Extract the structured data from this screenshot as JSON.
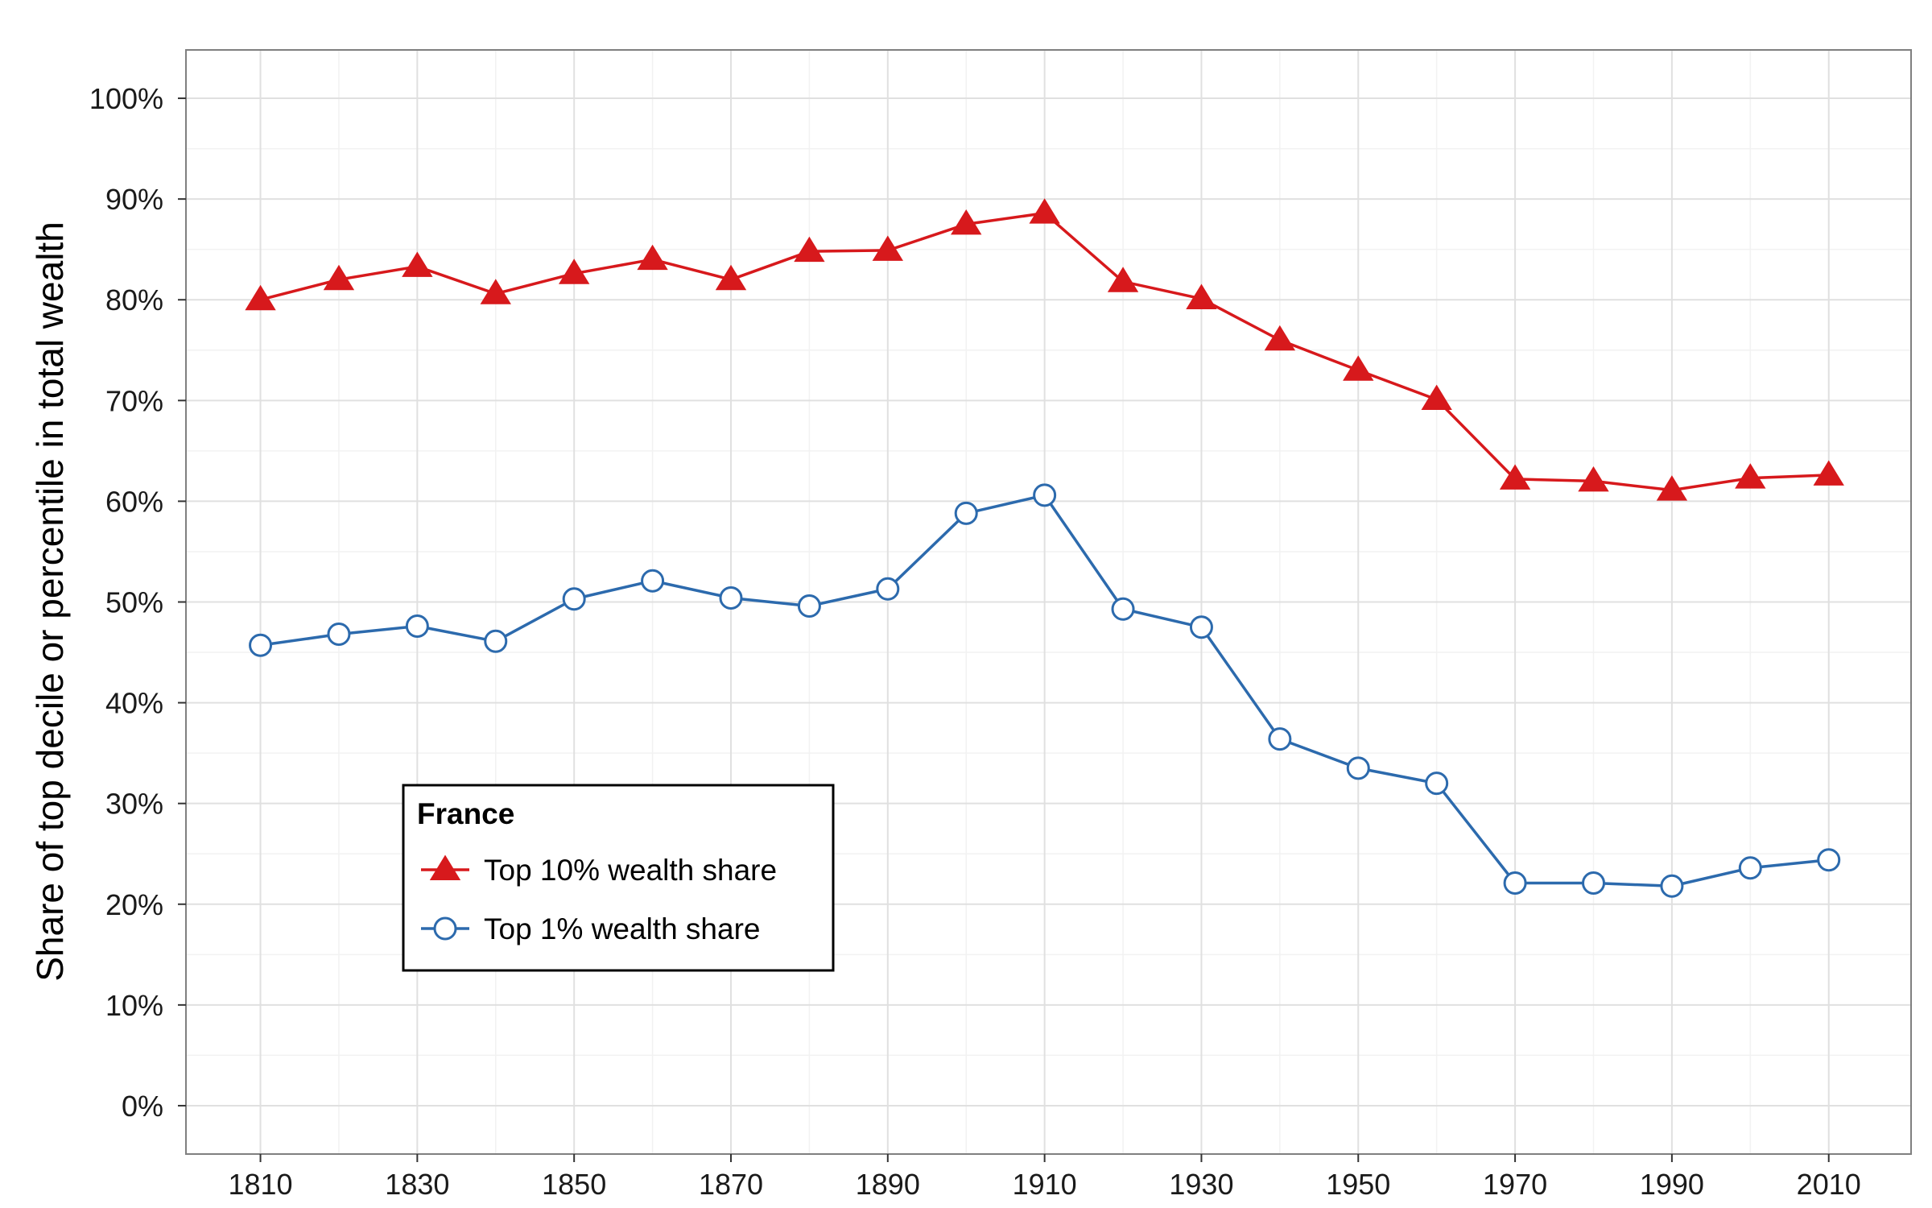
{
  "chart_data": {
    "type": "line",
    "title": "",
    "xlabel": "",
    "ylabel": "Share of top decile or percentile in total wealth",
    "x": [
      1810,
      1820,
      1830,
      1840,
      1850,
      1860,
      1870,
      1880,
      1890,
      1900,
      1910,
      1920,
      1930,
      1940,
      1950,
      1960,
      1970,
      1980,
      1990,
      2000,
      2010
    ],
    "series": [
      {
        "name": "Top 10% wealth share",
        "marker": "filled-triangle",
        "color": "#d7191c",
        "values": [
          80.0,
          82.0,
          83.3,
          80.6,
          82.6,
          84.0,
          82.0,
          84.8,
          84.9,
          87.5,
          88.6,
          81.8,
          80.1,
          76.0,
          73.0,
          70.1,
          62.2,
          62.0,
          61.1,
          62.3,
          62.6
        ]
      },
      {
        "name": "Top 1% wealth share",
        "marker": "open-circle",
        "color": "#2c6aad",
        "values": [
          45.7,
          46.8,
          47.6,
          46.1,
          50.3,
          52.1,
          50.4,
          49.6,
          51.3,
          58.8,
          60.6,
          49.3,
          47.5,
          36.4,
          33.5,
          32.0,
          22.1,
          22.1,
          21.8,
          23.6,
          24.4
        ]
      }
    ],
    "xticks": [
      "1810",
      "1830",
      "1850",
      "1870",
      "1890",
      "1910",
      "1930",
      "1950",
      "1970",
      "1990",
      "2010"
    ],
    "xtick_values": [
      1810,
      1830,
      1850,
      1870,
      1890,
      1910,
      1930,
      1950,
      1970,
      1990,
      2010
    ],
    "yticks": [
      "0%",
      "10%",
      "20%",
      "30%",
      "40%",
      "50%",
      "60%",
      "70%",
      "80%",
      "90%",
      "100%"
    ],
    "ytick_values": [
      0,
      10,
      20,
      30,
      40,
      50,
      60,
      70,
      80,
      90,
      100
    ],
    "xlim": [
      1800.5,
      2020.5
    ],
    "ylim": [
      -4.8,
      104.8
    ],
    "grid": true,
    "legend": {
      "title": "France",
      "position": "lower-left inside plot"
    },
    "colors": {
      "top10": "#d7191c",
      "top1": "#2c6aad",
      "panel_border": "#7f7f7f",
      "grid_major": "#e0e0e0",
      "grid_minor": "#f2f2f2"
    }
  }
}
